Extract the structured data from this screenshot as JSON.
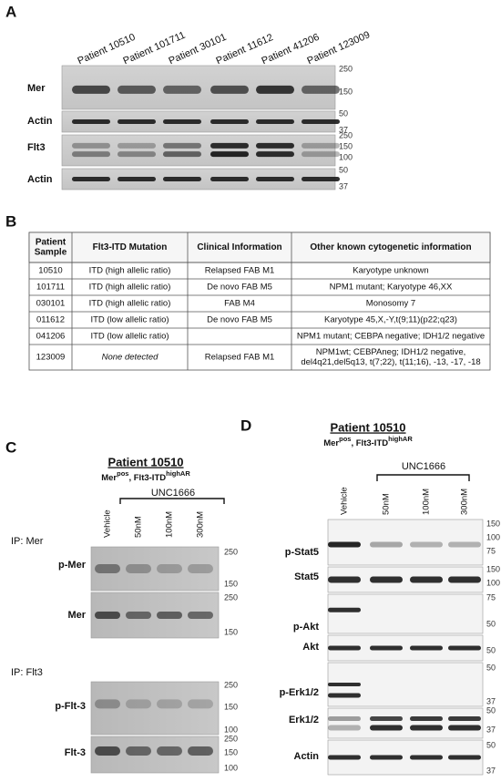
{
  "panels": {
    "a": {
      "label": "A",
      "lanes": [
        "Patient 10510",
        "Patient 101711",
        "Patient 30101",
        "Patient 11612",
        "Patient 41206",
        "Patient 123009"
      ],
      "rows": [
        {
          "name": "Mer",
          "markers": [
            250,
            150
          ]
        },
        {
          "name": "Actin",
          "markers": [
            50,
            37
          ]
        },
        {
          "name": "Flt3",
          "markers": [
            250,
            150,
            100
          ]
        },
        {
          "name": "Actin",
          "markers": [
            50,
            37
          ]
        }
      ]
    },
    "b": {
      "label": "B",
      "table": {
        "header": [
          [
            "Patient",
            "Sample"
          ],
          "Flt3-ITD Mutation",
          "Clinical Information",
          "Other known cytogenetic information"
        ],
        "rows": [
          [
            "10510",
            "ITD (high allelic ratio)",
            "Relapsed FAB M1",
            "Karyotype unknown"
          ],
          [
            "101711",
            "ITD (high allelic ratio)",
            "De novo FAB M5",
            "NPM1 mutant; Karyotype 46,XX"
          ],
          [
            "030101",
            "ITD (high allelic ratio)",
            "FAB M4",
            "Monosomy 7"
          ],
          [
            "011612",
            "ITD (low allelic ratio)",
            "De novo FAB M5",
            "Karyotype 45,X,-Y,t(9;11)(p22;q23)"
          ],
          [
            "041206",
            "ITD (low allelic ratio)",
            "",
            "NPM1 mutant; CEBPA negative; IDH1/2 negative"
          ],
          [
            "123009",
            "None detected",
            "Relapsed FAB M1",
            [
              "NPM1wt; CEBPAneg; IDH1/2 negative,",
              "del4q21,del5q13, t(7;22), t(11;16), -13, -17, -18"
            ]
          ]
        ]
      }
    },
    "c": {
      "label": "C",
      "title": "Patient 10510",
      "subtitle": [
        "Mer",
        "pos",
        ", Flt3-ITD",
        "highAR"
      ],
      "treatment": "UNC1666",
      "lanes": [
        "Vehicle",
        "50nM",
        "100nM",
        "300nM"
      ],
      "groups": [
        {
          "label": "IP: Mer",
          "rows": [
            {
              "name": "p-Mer",
              "markers": [
                250,
                150
              ]
            },
            {
              "name": "Mer",
              "markers": [
                250,
                150
              ]
            }
          ]
        },
        {
          "label": "IP: Flt3",
          "rows": [
            {
              "name": "p-Flt-3",
              "markers": [
                250,
                150,
                100
              ]
            },
            {
              "name": "Flt-3",
              "markers": [
                250,
                150,
                100
              ]
            }
          ]
        }
      ]
    },
    "d": {
      "label": "D",
      "title": "Patient 10510",
      "subtitle": [
        "Mer",
        "pos",
        ", Flt3-ITD",
        "highAR"
      ],
      "treatment": "UNC1666",
      "lanes": [
        "Vehicle",
        "50nM",
        "100nM",
        "300nM"
      ],
      "rows": [
        {
          "name": "p-Stat5",
          "markers": [
            150,
            100,
            75
          ]
        },
        {
          "name": "Stat5",
          "markers": [
            150,
            100
          ]
        },
        {
          "name": "p-Akt",
          "markers": [
            75,
            50
          ]
        },
        {
          "name": "Akt",
          "markers": [
            50
          ]
        },
        {
          "name": "p-Erk1/2",
          "markers": [
            50,
            37
          ]
        },
        {
          "name": "Erk1/2",
          "markers": [
            50,
            37
          ]
        },
        {
          "name": "Actin",
          "markers": [
            50,
            37
          ]
        }
      ]
    }
  }
}
